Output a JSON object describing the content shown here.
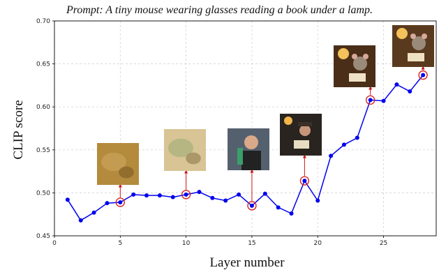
{
  "chart_data": {
    "type": "line",
    "title": "Prompt: A tiny mouse wearing glasses reading a book under a lamp.",
    "xlabel": "Layer number",
    "ylabel": "CLIP score",
    "xlim": [
      0,
      29
    ],
    "ylim": [
      0.45,
      0.7
    ],
    "xticks": [
      0,
      5,
      10,
      15,
      20,
      25
    ],
    "yticks": [
      0.45,
      0.5,
      0.55,
      0.6,
      0.65,
      0.7
    ],
    "ytick_labels": [
      "0.45",
      "0.50",
      "0.55",
      "0.60",
      "0.65",
      "0.70"
    ],
    "grid": true,
    "series": [
      {
        "color": "#0000ee",
        "x": [
          1,
          2,
          3,
          4,
          5,
          6,
          7,
          8,
          9,
          10,
          11,
          12,
          13,
          14,
          15,
          16,
          17,
          18,
          19,
          20,
          21,
          22,
          23,
          24,
          25,
          26,
          27,
          28
        ],
        "values": [
          0.492,
          0.468,
          0.477,
          0.488,
          0.489,
          0.498,
          0.497,
          0.497,
          0.495,
          0.498,
          0.501,
          0.494,
          0.491,
          0.498,
          0.485,
          0.499,
          0.483,
          0.476,
          0.514,
          0.491,
          0.543,
          0.556,
          0.564,
          0.608,
          0.607,
          0.626,
          0.618,
          0.637
        ]
      }
    ],
    "highlighted_x": [
      5,
      10,
      15,
      19,
      24,
      28
    ],
    "highlight_color": "#d62728",
    "thumbnails": [
      {
        "x": 5,
        "content": "blurry brown abstract texture"
      },
      {
        "x": 10,
        "content": "beige sketch of small figures"
      },
      {
        "x": 15,
        "content": "man holding a bottle"
      },
      {
        "x": 19,
        "content": "man in hat reading under lamp"
      },
      {
        "x": 24,
        "content": "mouse reading book under lamp"
      },
      {
        "x": 28,
        "content": "mouse with glasses reading under lamp"
      }
    ]
  }
}
